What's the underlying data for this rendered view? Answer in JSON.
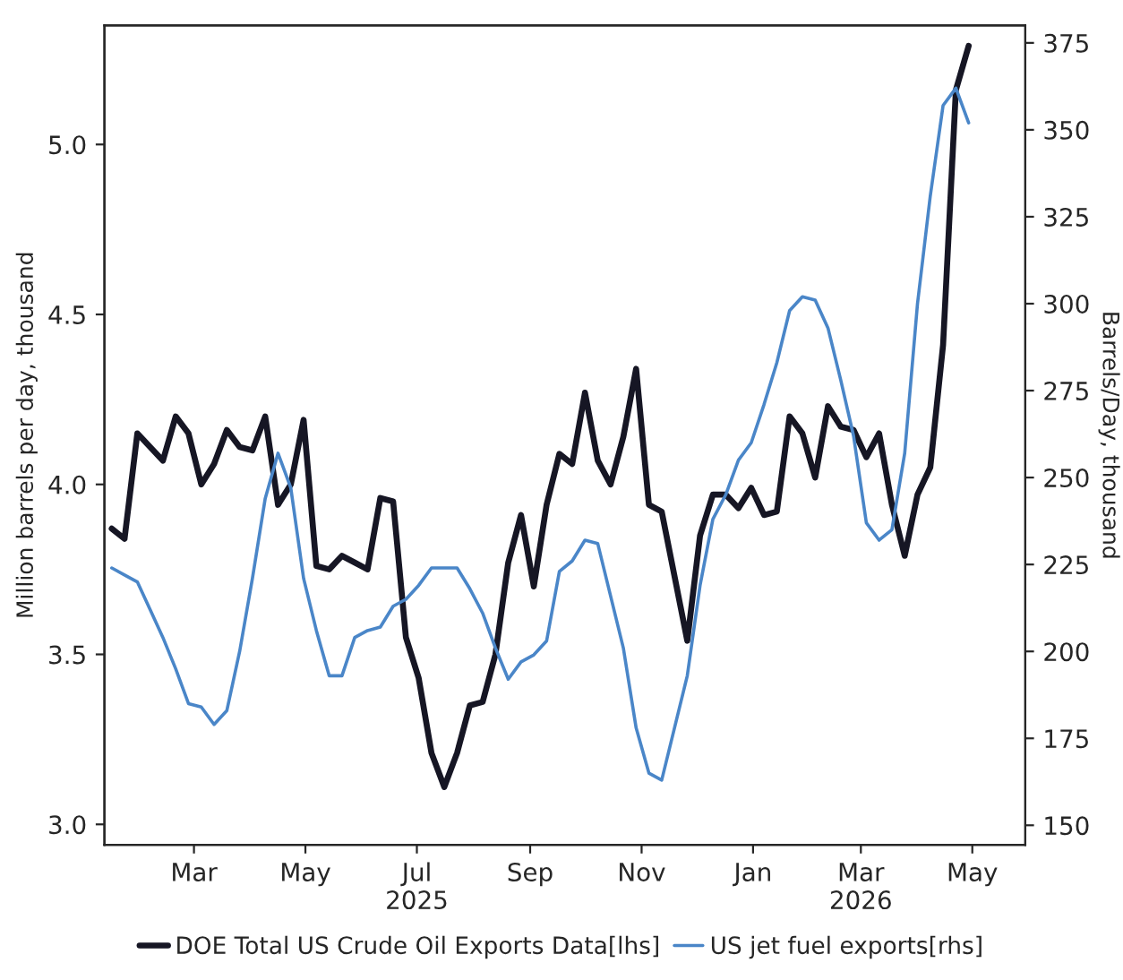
{
  "chart_data": {
    "type": "line",
    "ylabel": "Million barrels per day, thousand",
    "y2label": "Barrels/Day, thousand",
    "x": [
      "2025-01-15",
      "2025-01-22",
      "2025-01-29",
      "2025-02-05",
      "2025-02-12",
      "2025-02-19",
      "2025-02-26",
      "2025-03-05",
      "2025-03-12",
      "2025-03-19",
      "2025-03-26",
      "2025-04-02",
      "2025-04-09",
      "2025-04-16",
      "2025-04-23",
      "2025-04-30",
      "2025-05-07",
      "2025-05-14",
      "2025-05-21",
      "2025-05-28",
      "2025-06-04",
      "2025-06-11",
      "2025-06-18",
      "2025-06-25",
      "2025-07-02",
      "2025-07-09",
      "2025-07-16",
      "2025-07-23",
      "2025-07-30",
      "2025-08-06",
      "2025-08-13",
      "2025-08-20",
      "2025-08-27",
      "2025-09-03",
      "2025-09-10",
      "2025-09-17",
      "2025-09-24",
      "2025-10-01",
      "2025-10-08",
      "2025-10-15",
      "2025-10-22",
      "2025-10-29",
      "2025-11-05",
      "2025-11-12",
      "2025-11-19",
      "2025-11-26",
      "2025-12-03",
      "2025-12-10",
      "2025-12-17",
      "2025-12-24",
      "2025-12-31",
      "2026-01-07",
      "2026-01-14",
      "2026-01-21",
      "2026-01-28",
      "2026-02-04",
      "2026-02-11",
      "2026-02-18",
      "2026-02-25",
      "2026-03-04",
      "2026-03-11",
      "2026-03-18",
      "2026-03-25",
      "2026-04-01",
      "2026-04-08",
      "2026-04-15",
      "2026-04-22",
      "2026-04-29"
    ],
    "series": [
      {
        "name": "DOE Total US Crude Oil Exports Data[lhs]",
        "color": "#161624",
        "values": [
          3.87,
          3.84,
          4.15,
          4.11,
          4.07,
          4.2,
          4.15,
          4.0,
          4.06,
          4.16,
          4.11,
          4.1,
          4.2,
          3.94,
          4.0,
          4.19,
          3.76,
          3.75,
          3.79,
          3.77,
          3.75,
          3.96,
          3.95,
          3.55,
          3.43,
          3.21,
          3.11,
          3.21,
          3.35,
          3.36,
          3.5,
          3.77,
          3.91,
          3.7,
          3.94,
          4.09,
          4.06,
          4.27,
          4.07,
          4.0,
          4.14,
          4.34,
          3.94,
          3.92,
          3.73,
          3.54,
          3.85,
          3.97,
          3.97,
          3.93,
          3.99,
          3.91,
          3.92,
          4.2,
          4.15,
          4.02,
          4.23,
          4.17,
          4.16,
          4.08,
          4.15,
          3.94,
          3.79,
          3.97,
          4.05,
          4.41,
          5.16,
          5.29
        ]
      },
      {
        "name": "US jet fuel exports[rhs]",
        "color": "#4a86c8",
        "axis": "y2",
        "values": [
          224,
          222,
          220,
          212,
          204,
          195,
          185,
          184,
          179,
          183,
          200,
          221,
          244,
          257,
          247,
          221,
          206,
          193,
          193,
          204,
          206,
          207,
          213,
          215,
          219,
          224,
          224,
          224,
          218,
          211,
          201,
          192,
          197,
          199,
          203,
          223,
          226,
          232,
          231,
          216,
          201,
          178,
          165,
          163,
          178,
          193,
          219,
          238,
          245,
          255,
          260,
          271,
          283,
          298,
          302,
          301,
          293,
          278,
          262,
          237,
          232,
          235,
          257,
          300,
          331,
          357,
          362,
          352
        ]
      }
    ],
    "xlim": [
      "2025-01-11",
      "2026-05-30"
    ],
    "xticks": [
      {
        "value": "2025-03-01",
        "label": "Mar"
      },
      {
        "value": "2025-05-01",
        "label": "May"
      },
      {
        "value": "2025-07-01",
        "label": "Jul\n2025"
      },
      {
        "value": "2025-09-01",
        "label": "Sep"
      },
      {
        "value": "2025-11-01",
        "label": "Nov"
      },
      {
        "value": "2026-01-01",
        "label": "Jan"
      },
      {
        "value": "2026-03-01",
        "label": "Mar\n2026"
      },
      {
        "value": "2026-05-01",
        "label": "May"
      }
    ],
    "ylim": [
      2.94,
      5.35
    ],
    "yticks": [
      {
        "value": 3,
        "label": "3.0"
      },
      {
        "value": 3.5,
        "label": "3.5"
      },
      {
        "value": 4,
        "label": "4.0"
      },
      {
        "value": 4.5,
        "label": "4.5"
      },
      {
        "value": 5,
        "label": "5.0"
      }
    ],
    "y2lim": [
      144.4,
      380
    ],
    "y2ticks": [
      150,
      175,
      200,
      225,
      250,
      275,
      300,
      325,
      350,
      375
    ],
    "grid": false,
    "legend": "bottom"
  }
}
